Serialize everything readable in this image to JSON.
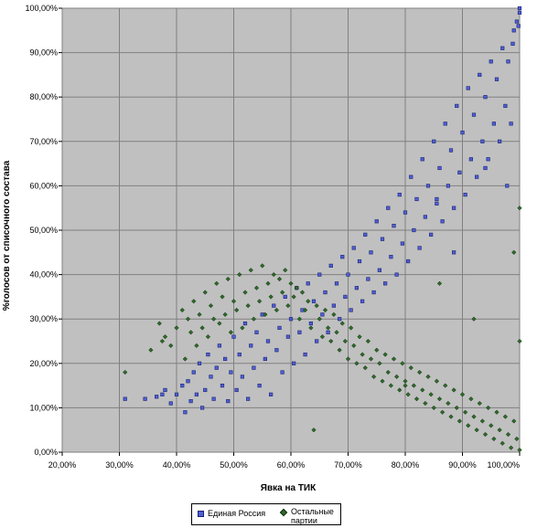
{
  "chart_data": {
    "type": "scatter",
    "title": "",
    "xlabel": "Явка на ТИК",
    "ylabel": "%голосов от списочного состава",
    "xlim": [
      20,
      100
    ],
    "ylim": [
      0,
      100
    ],
    "x_ticks": [
      "20,00%",
      "30,00%",
      "40,00%",
      "50,00%",
      "60,00%",
      "70,00%",
      "80,00%",
      "90,00%",
      "100,00%"
    ],
    "y_ticks": [
      "0,00%",
      "10,00%",
      "20,00%",
      "30,00%",
      "40,00%",
      "50,00%",
      "60,00%",
      "70,00%",
      "80,00%",
      "90,00%",
      "100,00%"
    ],
    "grid": true,
    "legend_position": "bottom",
    "series": [
      {
        "name": "Единая Россия",
        "color": "#4f5fd6",
        "marker": "square",
        "points": [
          [
            31,
            12
          ],
          [
            34.5,
            12
          ],
          [
            36.5,
            12.5
          ],
          [
            37.5,
            13
          ],
          [
            38,
            14
          ],
          [
            39,
            11
          ],
          [
            40,
            13
          ],
          [
            41,
            15
          ],
          [
            41.5,
            9
          ],
          [
            42,
            16
          ],
          [
            42.5,
            11.5
          ],
          [
            43,
            18
          ],
          [
            43.5,
            13
          ],
          [
            44,
            20
          ],
          [
            44.5,
            10
          ],
          [
            45,
            14
          ],
          [
            45.5,
            22
          ],
          [
            46,
            17
          ],
          [
            46.5,
            12
          ],
          [
            47,
            19
          ],
          [
            47.5,
            24
          ],
          [
            48,
            15
          ],
          [
            48.5,
            21
          ],
          [
            49,
            11.5
          ],
          [
            49.5,
            18
          ],
          [
            50,
            26
          ],
          [
            50.5,
            14
          ],
          [
            51,
            22
          ],
          [
            51.5,
            17
          ],
          [
            52,
            29
          ],
          [
            52.5,
            12
          ],
          [
            53,
            24
          ],
          [
            53.5,
            19
          ],
          [
            54,
            27
          ],
          [
            54.5,
            15
          ],
          [
            55,
            31
          ],
          [
            55.5,
            21
          ],
          [
            56,
            25
          ],
          [
            56.5,
            13
          ],
          [
            57,
            33
          ],
          [
            57.5,
            23
          ],
          [
            58,
            28
          ],
          [
            58.5,
            18
          ],
          [
            59,
            35
          ],
          [
            59.5,
            26
          ],
          [
            60,
            30
          ],
          [
            60.5,
            20
          ],
          [
            61,
            37
          ],
          [
            61.5,
            27
          ],
          [
            62,
            32
          ],
          [
            62.5,
            22
          ],
          [
            63,
            38
          ],
          [
            63.5,
            29
          ],
          [
            64,
            34
          ],
          [
            64.5,
            25
          ],
          [
            65,
            40
          ],
          [
            65.5,
            31
          ],
          [
            66,
            36
          ],
          [
            66.5,
            27
          ],
          [
            67,
            42
          ],
          [
            67.5,
            33
          ],
          [
            68,
            38
          ],
          [
            68.5,
            30
          ],
          [
            69,
            44
          ],
          [
            69.5,
            35
          ],
          [
            70,
            40
          ],
          [
            70.5,
            32
          ],
          [
            71,
            46
          ],
          [
            71.5,
            37
          ],
          [
            72,
            43
          ],
          [
            72.5,
            34
          ],
          [
            73,
            49
          ],
          [
            73.5,
            39
          ],
          [
            74,
            45
          ],
          [
            74.5,
            36
          ],
          [
            75,
            52
          ],
          [
            75.5,
            41
          ],
          [
            76,
            48
          ],
          [
            76.5,
            38
          ],
          [
            77,
            55
          ],
          [
            77.5,
            44
          ],
          [
            78,
            51
          ],
          [
            78.5,
            40
          ],
          [
            79,
            58
          ],
          [
            79.5,
            47
          ],
          [
            80,
            54
          ],
          [
            80.5,
            43
          ],
          [
            81,
            62
          ],
          [
            81.5,
            50
          ],
          [
            82,
            57
          ],
          [
            82.5,
            46
          ],
          [
            83,
            66
          ],
          [
            83.5,
            53
          ],
          [
            84,
            60
          ],
          [
            84.5,
            49
          ],
          [
            85,
            70
          ],
          [
            85.5,
            56
          ],
          [
            86,
            64
          ],
          [
            86.5,
            52
          ],
          [
            87,
            74
          ],
          [
            87.5,
            60
          ],
          [
            88,
            68
          ],
          [
            88.5,
            55
          ],
          [
            89,
            78
          ],
          [
            89.5,
            63
          ],
          [
            90,
            72
          ],
          [
            90.5,
            58
          ],
          [
            91,
            82
          ],
          [
            91.5,
            66
          ],
          [
            92,
            76
          ],
          [
            92.5,
            62
          ],
          [
            93,
            85
          ],
          [
            93.5,
            70
          ],
          [
            94,
            80
          ],
          [
            94.5,
            66
          ],
          [
            95,
            88
          ],
          [
            95.5,
            74
          ],
          [
            96,
            84
          ],
          [
            96.5,
            70
          ],
          [
            97,
            91
          ],
          [
            97.5,
            78
          ],
          [
            98,
            88
          ],
          [
            98.5,
            74
          ],
          [
            99,
            95
          ],
          [
            99.5,
            97
          ],
          [
            100,
            99
          ],
          [
            100,
            100
          ],
          [
            99.8,
            96
          ],
          [
            98.8,
            92
          ],
          [
            97.8,
            60
          ],
          [
            88.5,
            45
          ],
          [
            94,
            64
          ],
          [
            85.5,
            57
          ]
        ]
      },
      {
        "name": "Остальные партии",
        "color": "#2e6b2a",
        "marker": "diamond",
        "points": [
          [
            31,
            18
          ],
          [
            35.5,
            23
          ],
          [
            37,
            29
          ],
          [
            37.5,
            25
          ],
          [
            38,
            26
          ],
          [
            39,
            24
          ],
          [
            40,
            28
          ],
          [
            41,
            32
          ],
          [
            41.5,
            21
          ],
          [
            42,
            30
          ],
          [
            42.5,
            27
          ],
          [
            43,
            34
          ],
          [
            43.5,
            24
          ],
          [
            44,
            31
          ],
          [
            44.5,
            28
          ],
          [
            45,
            36
          ],
          [
            45.5,
            26
          ],
          [
            46,
            33
          ],
          [
            46.5,
            30
          ],
          [
            47,
            38
          ],
          [
            47.5,
            29
          ],
          [
            48,
            35
          ],
          [
            48.5,
            31
          ],
          [
            49,
            39
          ],
          [
            49.5,
            27
          ],
          [
            50,
            34
          ],
          [
            50.5,
            32
          ],
          [
            51,
            40
          ],
          [
            51.5,
            28
          ],
          [
            52,
            36
          ],
          [
            52.5,
            33
          ],
          [
            53,
            41
          ],
          [
            53.5,
            30
          ],
          [
            54,
            37
          ],
          [
            54.5,
            34
          ],
          [
            55,
            42
          ],
          [
            55.5,
            31
          ],
          [
            56,
            38
          ],
          [
            56.5,
            35
          ],
          [
            57,
            40
          ],
          [
            57.5,
            32
          ],
          [
            58,
            39
          ],
          [
            58.5,
            36
          ],
          [
            59,
            41
          ],
          [
            59.5,
            33
          ],
          [
            60,
            38
          ],
          [
            60.5,
            35
          ],
          [
            61,
            37
          ],
          [
            61.5,
            30
          ],
          [
            62,
            36
          ],
          [
            62.5,
            32
          ],
          [
            63,
            34
          ],
          [
            63.5,
            28
          ],
          [
            64,
            5
          ],
          [
            64.5,
            33
          ],
          [
            65,
            30
          ],
          [
            65.5,
            26
          ],
          [
            66,
            32
          ],
          [
            66.5,
            28
          ],
          [
            67,
            25
          ],
          [
            67.5,
            31
          ],
          [
            68,
            27
          ],
          [
            68.5,
            23
          ],
          [
            69,
            29
          ],
          [
            69.5,
            25
          ],
          [
            70,
            21
          ],
          [
            70.5,
            28
          ],
          [
            71,
            24
          ],
          [
            71.5,
            20
          ],
          [
            72,
            26
          ],
          [
            72.5,
            22
          ],
          [
            73,
            19
          ],
          [
            73.5,
            25
          ],
          [
            74,
            21
          ],
          [
            74.5,
            17
          ],
          [
            75,
            23
          ],
          [
            75.5,
            20
          ],
          [
            76,
            16
          ],
          [
            76.5,
            22
          ],
          [
            77,
            18
          ],
          [
            77.5,
            15
          ],
          [
            78,
            21
          ],
          [
            78.5,
            17
          ],
          [
            79,
            14
          ],
          [
            79.5,
            20
          ],
          [
            80,
            16
          ],
          [
            80.5,
            13
          ],
          [
            81,
            19
          ],
          [
            81.5,
            15
          ],
          [
            82,
            12
          ],
          [
            82.5,
            18
          ],
          [
            83,
            14
          ],
          [
            83.5,
            11
          ],
          [
            84,
            17
          ],
          [
            84.5,
            13
          ],
          [
            85,
            10
          ],
          [
            85.5,
            16
          ],
          [
            86,
            12
          ],
          [
            86.5,
            9
          ],
          [
            87,
            15
          ],
          [
            87.5,
            11
          ],
          [
            88,
            8
          ],
          [
            88.5,
            14
          ],
          [
            89,
            10
          ],
          [
            89.5,
            7
          ],
          [
            90,
            13
          ],
          [
            90.5,
            9
          ],
          [
            91,
            6
          ],
          [
            91.5,
            12
          ],
          [
            92,
            8
          ],
          [
            92.5,
            5
          ],
          [
            93,
            11
          ],
          [
            93.5,
            7
          ],
          [
            94,
            4
          ],
          [
            94.5,
            10
          ],
          [
            95,
            6
          ],
          [
            95.5,
            3
          ],
          [
            96,
            9
          ],
          [
            96.5,
            5
          ],
          [
            97,
            2
          ],
          [
            97.5,
            8
          ],
          [
            98,
            4
          ],
          [
            98.5,
            1
          ],
          [
            99,
            7
          ],
          [
            99.5,
            3
          ],
          [
            100,
            0.5
          ],
          [
            100,
            25
          ],
          [
            100,
            55
          ],
          [
            99,
            45
          ],
          [
            80,
            15
          ],
          [
            86,
            38
          ],
          [
            92,
            30
          ]
        ]
      }
    ]
  },
  "legend": {
    "item1_label": "Единая Россия",
    "item2_line1": "Остальные",
    "item2_line2": "партии"
  }
}
